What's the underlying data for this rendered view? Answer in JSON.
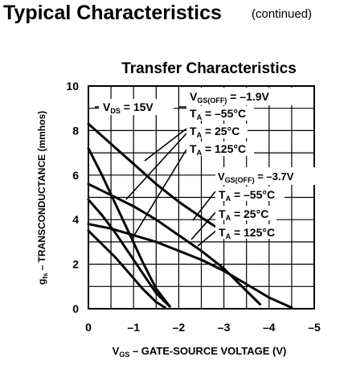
{
  "header": {
    "title": "Typical Characteristics",
    "subtitle": "(continued)"
  },
  "chart_data": {
    "type": "line",
    "title": "Transfer Characteristics",
    "xlabel_main": "V",
    "xlabel_sub": "GS",
    "xlabel_rest": " – GATE-SOURCE VOLTAGE (V)",
    "ylabel_main": "g",
    "ylabel_sub": "fs",
    "ylabel_rest": " – TRANSCONDUCTANCE (mmhos)",
    "xlim": [
      0,
      -5
    ],
    "ylim": [
      0,
      10
    ],
    "x_ticks": [
      0,
      -1,
      -2,
      -3,
      -4,
      -5
    ],
    "x_tick_labels": [
      "0",
      "–1",
      "–2",
      "–3",
      "–4",
      "–5"
    ],
    "y_ticks": [
      0,
      2,
      4,
      6,
      8,
      10
    ],
    "y_tick_labels": [
      "0",
      "2",
      "4",
      "6",
      "8",
      "10"
    ],
    "grid": true,
    "annotations": {
      "vds": {
        "main": "V",
        "sub": "DS",
        "rest": " = 15V"
      },
      "group1": {
        "vgs": {
          "main": "V",
          "sub": "GS(OFF)",
          "rest": " = –1.9V"
        },
        "temps": [
          {
            "main": "T",
            "sub": "A",
            "rest": " = –55°C"
          },
          {
            "main": "T",
            "sub": "A",
            "rest": " = 25°C"
          },
          {
            "main": "T",
            "sub": "A",
            "rest": " = 125°C"
          }
        ]
      },
      "group2": {
        "vgs": {
          "main": "V",
          "sub": "GS(OFF)",
          "rest": " = –3.7V"
        },
        "temps": [
          {
            "main": "T",
            "sub": "A",
            "rest": " = –55°C"
          },
          {
            "main": "T",
            "sub": "A",
            "rest": " = 25°C"
          },
          {
            "main": "T",
            "sub": "A",
            "rest": " = 125°C"
          }
        ]
      }
    },
    "series": [
      {
        "group": "VGS(OFF) = -3.7V",
        "temp": "-55°C",
        "x": [
          0,
          -0.5,
          -1,
          -1.5,
          -2,
          -2.5,
          -2.8
        ],
        "y": [
          8.3,
          7.4,
          6.5,
          5.6,
          4.8,
          4.1,
          3.7
        ]
      },
      {
        "group": "VGS(OFF) = -3.7V",
        "temp": "25°C",
        "x": [
          0,
          -0.5,
          -1,
          -1.5,
          -2,
          -2.5,
          -3,
          -3.5,
          -3.8
        ],
        "y": [
          5.6,
          5.1,
          4.6,
          4.0,
          3.3,
          2.6,
          1.8,
          0.8,
          0.2
        ]
      },
      {
        "group": "VGS(OFF) = -3.7V",
        "temp": "125°C",
        "x": [
          0,
          -0.5,
          -1,
          -1.5,
          -2,
          -2.5,
          -3,
          -3.5,
          -4,
          -4.5
        ],
        "y": [
          3.8,
          3.6,
          3.3,
          3.0,
          2.6,
          2.2,
          1.7,
          1.1,
          0.5,
          0.05
        ]
      },
      {
        "group": "VGS(OFF) = -1.9V",
        "temp": "-55°C",
        "x": [
          0,
          -0.3,
          -0.6,
          -0.9,
          -1.2,
          -1.5,
          -1.8
        ],
        "y": [
          7.2,
          6.0,
          4.7,
          3.4,
          2.1,
          0.9,
          0.1
        ]
      },
      {
        "group": "VGS(OFF) = -1.9V",
        "temp": "25°C",
        "x": [
          0,
          -0.3,
          -0.6,
          -0.9,
          -1.2,
          -1.5,
          -1.8
        ],
        "y": [
          4.9,
          4.2,
          3.4,
          2.5,
          1.6,
          0.7,
          0.1
        ]
      },
      {
        "group": "VGS(OFF) = -1.9V",
        "temp": "125°C",
        "x": [
          0,
          -0.3,
          -0.6,
          -0.9,
          -1.2,
          -1.5,
          -1.7
        ],
        "y": [
          3.5,
          2.9,
          2.3,
          1.6,
          0.9,
          0.3,
          0.05
        ]
      }
    ]
  }
}
